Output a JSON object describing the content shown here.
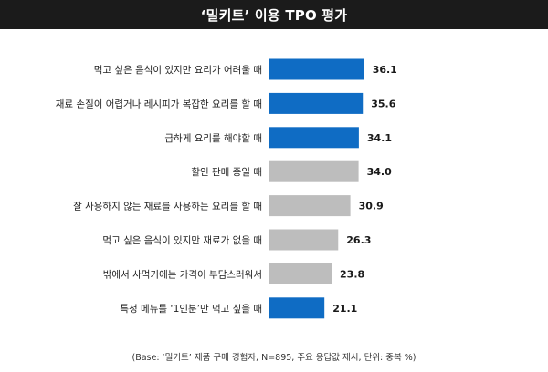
{
  "chart_data": {
    "type": "bar",
    "orientation": "horizontal",
    "title": "‘밀키트’ 이용 TPO 평가",
    "categories": [
      "먹고 싶은 음식이 있지만 요리가 어려울 때",
      "재료 손질이 어렵거나 레시피가 복잡한 요리를 할 때",
      "급하게 요리를 해야할 때",
      "할인 판매 중일 때",
      "잘 사용하지 않는 재료를 사용하는 요리를 할 때",
      "먹고 싶은 음식이 있지만 재료가 없을 때",
      "밖에서 사먹기에는 가격이 부담스러워서",
      "특정 메뉴를 ‘1인분’만 먹고 싶을 때"
    ],
    "values": [
      36.1,
      35.6,
      34.1,
      34.0,
      30.9,
      26.3,
      23.8,
      21.1
    ],
    "value_labels": [
      "36.1",
      "35.6",
      "34.1",
      "34.0",
      "30.9",
      "26.3",
      "23.8",
      "21.1"
    ],
    "highlighted": [
      true,
      true,
      true,
      false,
      false,
      false,
      false,
      true
    ],
    "colors": {
      "highlight": "#0f6cc4",
      "normal": "#bdbdbd"
    },
    "xlim": [
      0,
      40
    ],
    "grid": false,
    "footnote": "(Base: ‘밀키트’ 제품 구매 경험자, N=895, 주요 응답값 제시, 단위: 중복 %)"
  }
}
